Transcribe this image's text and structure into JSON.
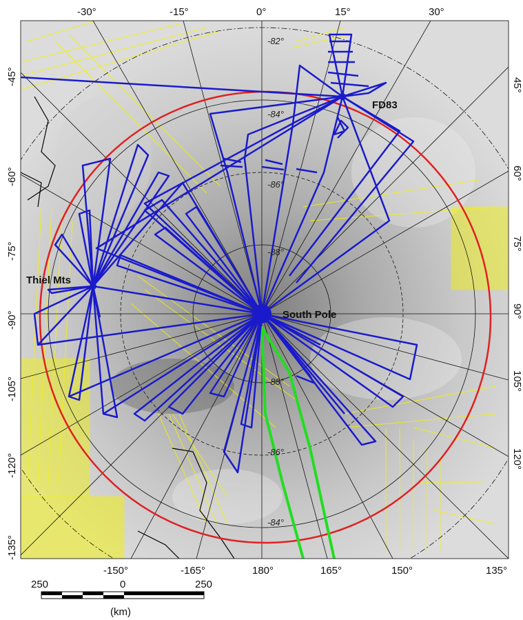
{
  "map": {
    "top_longitudes": [
      "-30°",
      "-15°",
      "0°",
      "15°",
      "30°"
    ],
    "bottom_longitudes": [
      "-150°",
      "-165°",
      "180°",
      "165°",
      "150°",
      "135°"
    ],
    "left_longitudes": [
      "-45°",
      "-60°",
      "-75°",
      "-90°",
      "-105°",
      "-120°",
      "-135°"
    ],
    "right_longitudes": [
      "45°",
      "60°",
      "75°",
      "90°",
      "105°",
      "120°"
    ],
    "latitude_labels": [
      "-82°",
      "-84°",
      "-86°",
      "-88°",
      "-88°",
      "-86°",
      "-84°"
    ],
    "places": {
      "fd83": "FD83",
      "thiel": "Thiel Mts",
      "pole": "South Pole"
    },
    "colors": {
      "flight_lines": "#1a1acc",
      "study_boundary": "#e02020",
      "traverse": "#22dd22",
      "other_surveys": "#f2f200",
      "graticule": "#111111"
    }
  },
  "scale": {
    "left_value": "250",
    "middle_value": "0",
    "right_value": "250",
    "unit": "(km)"
  }
}
